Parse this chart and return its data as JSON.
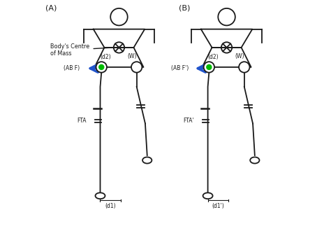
{
  "bg_color": "#ffffff",
  "line_color": "#1a1a1a",
  "arrow_color": "#2255cc",
  "green_dot_color": "#00bb00",
  "label_A": "(A)",
  "label_B": "(B)",
  "body_centre_label": "Body's Centre\nof Mass",
  "w_label": "(W)",
  "d2_label": "(d2)",
  "abf_label_A": "(AB F)",
  "abf_label_B": "(AB F')",
  "fta_label_A": "FTA",
  "fta_label_B": "FTA'",
  "d1_label_A": "(d1)",
  "d1_label_B": "(d1')"
}
